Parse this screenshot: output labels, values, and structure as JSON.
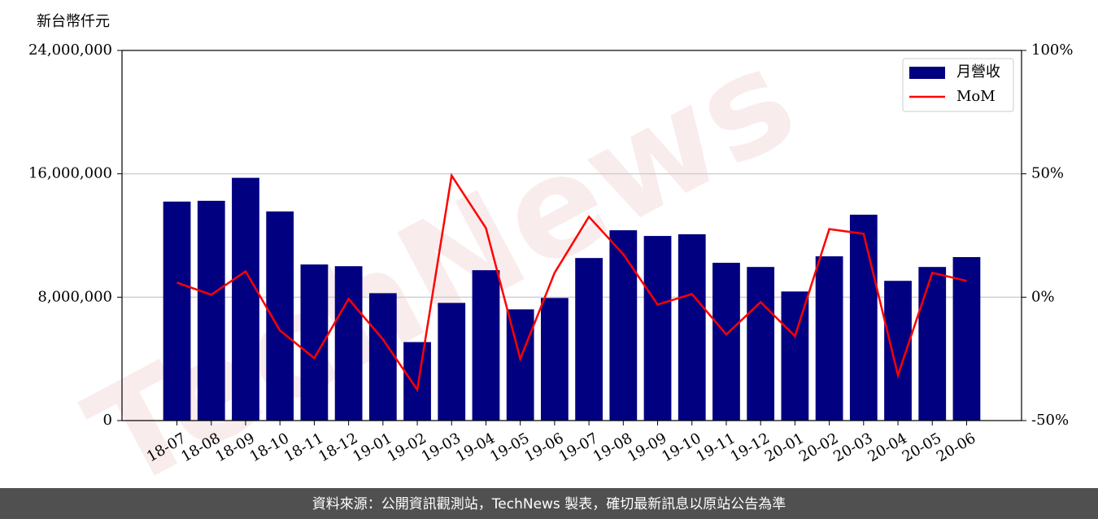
{
  "chart_data": {
    "type": "bar_line",
    "y_label": "新台幣仟元",
    "source": "資料來源：公開資訊觀測站，TechNews 製表，確切最新訊息以原站公告為準",
    "watermark": "TechNews",
    "categories": [
      "18-07",
      "18-08",
      "18-09",
      "18-10",
      "18-11",
      "18-12",
      "19-01",
      "19-02",
      "19-03",
      "19-04",
      "19-05",
      "19-06",
      "19-07",
      "19-08",
      "19-09",
      "19-10",
      "19-11",
      "19-12",
      "20-01",
      "20-02",
      "20-03",
      "20-04",
      "20-05",
      "20-06"
    ],
    "series": [
      {
        "name": "月營收",
        "type": "bar",
        "color": "#000080",
        "values": [
          14200000,
          14250000,
          15740000,
          13560000,
          10120000,
          10010000,
          8260000,
          5090000,
          7630000,
          9750000,
          7210000,
          7950000,
          10540000,
          12340000,
          11970000,
          12080000,
          10230000,
          9960000,
          8370000,
          10650000,
          13350000,
          9060000,
          9960000,
          10600000
        ]
      },
      {
        "name": "MoM",
        "type": "line",
        "color": "#ff0000",
        "axis": "y2",
        "values": [
          5.9,
          1,
          10.5,
          -13.5,
          -24.7,
          -0.7,
          -17.1,
          -37.5,
          49.3,
          28,
          -25,
          9.9,
          32.6,
          17.4,
          -3,
          1.3,
          -15.1,
          -2,
          -15.8,
          27.6,
          25.7,
          -31.6,
          9.9,
          6.6
        ]
      }
    ],
    "ylim": [
      0,
      24000000
    ],
    "yticks": [
      0,
      {
        "value": 8000000,
        "label": "8,000,000"
      },
      {
        "value": 16000000,
        "label": "16,000,000"
      },
      {
        "value": 24000000,
        "label": "24,000,000"
      }
    ],
    "y2lim": [
      -50,
      100
    ],
    "y2ticks": [
      {
        "value": -50,
        "label": "-50%"
      },
      {
        "value": 0,
        "label": "0%"
      },
      {
        "value": 50,
        "label": "50%"
      },
      {
        "value": 100,
        "label": "100%"
      }
    ],
    "grid": true,
    "legend": "upper right"
  }
}
